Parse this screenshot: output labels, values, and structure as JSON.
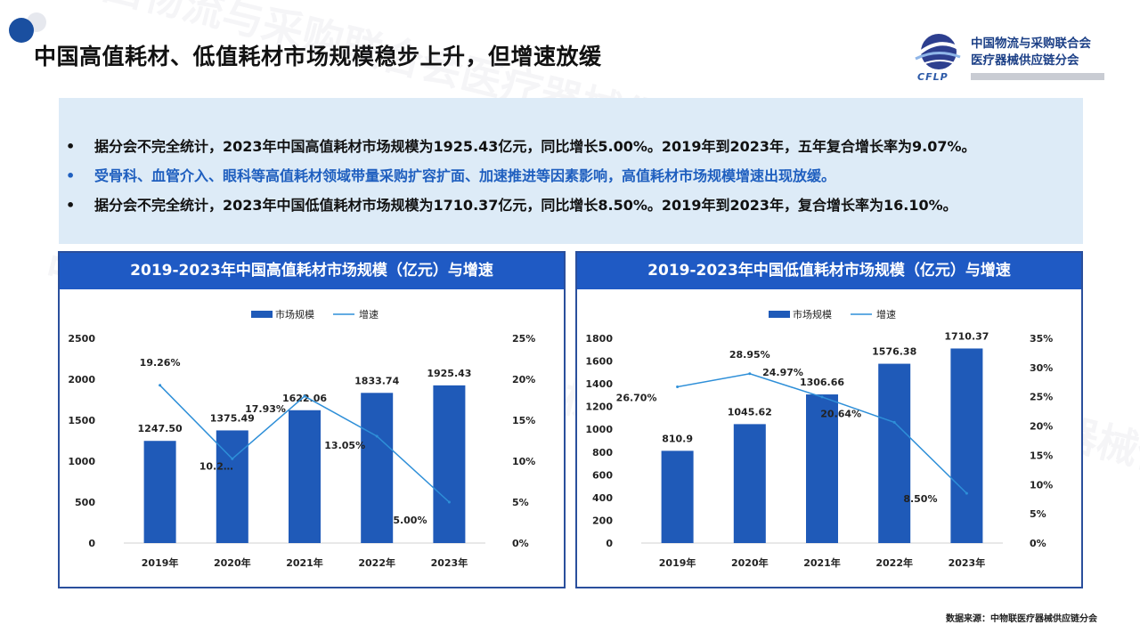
{
  "page": {
    "title": "中国高值耗材、低值耗材市场规模稳步上升，但增速放缓",
    "source": "数据来源：中物联医疗器械供应链分会"
  },
  "logo": {
    "line1": "中国物流与采购联合会",
    "line2": "医疗器械供应链分会",
    "mark": "CFLP"
  },
  "bullets": [
    {
      "mark": "•",
      "text": "据分会不完全统计，2023年中国高值耗材市场规模为1925.43亿元，同比增长5.00%。2019年到2023年，五年复合增长率为9.07%。"
    },
    {
      "mark": "•",
      "text": "受骨科、血管介入、眼科等高值耗材领域带量采购扩容扩面、加速推进等因素影响，高值耗材市场规模增速出现放缓。"
    },
    {
      "mark": "•",
      "text": "据分会不完全统计，2023年中国低值耗材市场规模为1710.37亿元，同比增长8.50%。2019年到2023年，复合增长率为16.10%。"
    }
  ],
  "watermark": "中国物流与采购联合会医疗器械供应链分会",
  "colors": {
    "bar": "#1f5ab8",
    "line": "#2e8fd8",
    "header": "#1f5ac4",
    "highlight_text": "#1f5fbf"
  },
  "chart_data": [
    {
      "type": "bar",
      "title": "2019-2023年中国高值耗材市场规模（亿元）与增速",
      "categories": [
        "2019年",
        "2020年",
        "2021年",
        "2022年",
        "2023年"
      ],
      "series": [
        {
          "name": "市场规模",
          "type": "bar",
          "axis": "left",
          "values": [
            1247.5,
            1375.49,
            1622.06,
            1833.74,
            1925.43
          ],
          "labels": [
            "1247.50",
            "1375.49",
            "1622.06",
            "1833.74",
            "1925.43"
          ]
        },
        {
          "name": "增速",
          "type": "line",
          "axis": "right",
          "values": [
            19.26,
            10.29,
            17.93,
            13.05,
            5.0
          ],
          "labels": [
            "19.26%",
            "10.2…",
            "17.93%",
            "13.05%",
            "5.00%"
          ]
        }
      ],
      "ylim": [
        0,
        2500
      ],
      "yticks": [
        0,
        500,
        1000,
        1500,
        2000,
        2500
      ],
      "y2lim": [
        0,
        25
      ],
      "y2ticks": [
        "0%",
        "5%",
        "10%",
        "15%",
        "20%",
        "25%"
      ],
      "legend_position": "top-center",
      "grid": false
    },
    {
      "type": "bar",
      "title": "2019-2023年中国低值耗材市场规模（亿元）与增速",
      "categories": [
        "2019年",
        "2020年",
        "2021年",
        "2022年",
        "2023年"
      ],
      "series": [
        {
          "name": "市场规模",
          "type": "bar",
          "axis": "left",
          "values": [
            810.9,
            1045.62,
            1306.66,
            1576.38,
            1710.37
          ],
          "labels": [
            "810.9",
            "1045.62",
            "1306.66",
            "1576.38",
            "1710.37"
          ]
        },
        {
          "name": "增速",
          "type": "line",
          "axis": "right",
          "values": [
            26.7,
            28.95,
            24.97,
            20.64,
            8.5
          ],
          "labels": [
            "26.70%",
            "28.95%",
            "24.97%",
            "20.64%",
            "8.50%"
          ]
        }
      ],
      "ylim": [
        0,
        1800
      ],
      "yticks": [
        0,
        200,
        400,
        600,
        800,
        1000,
        1200,
        1400,
        1600,
        1800
      ],
      "y2lim": [
        0,
        35
      ],
      "y2ticks": [
        "0%",
        "5%",
        "10%",
        "15%",
        "20%",
        "25%",
        "30%",
        "35%"
      ],
      "legend_position": "top-center",
      "grid": false
    }
  ]
}
